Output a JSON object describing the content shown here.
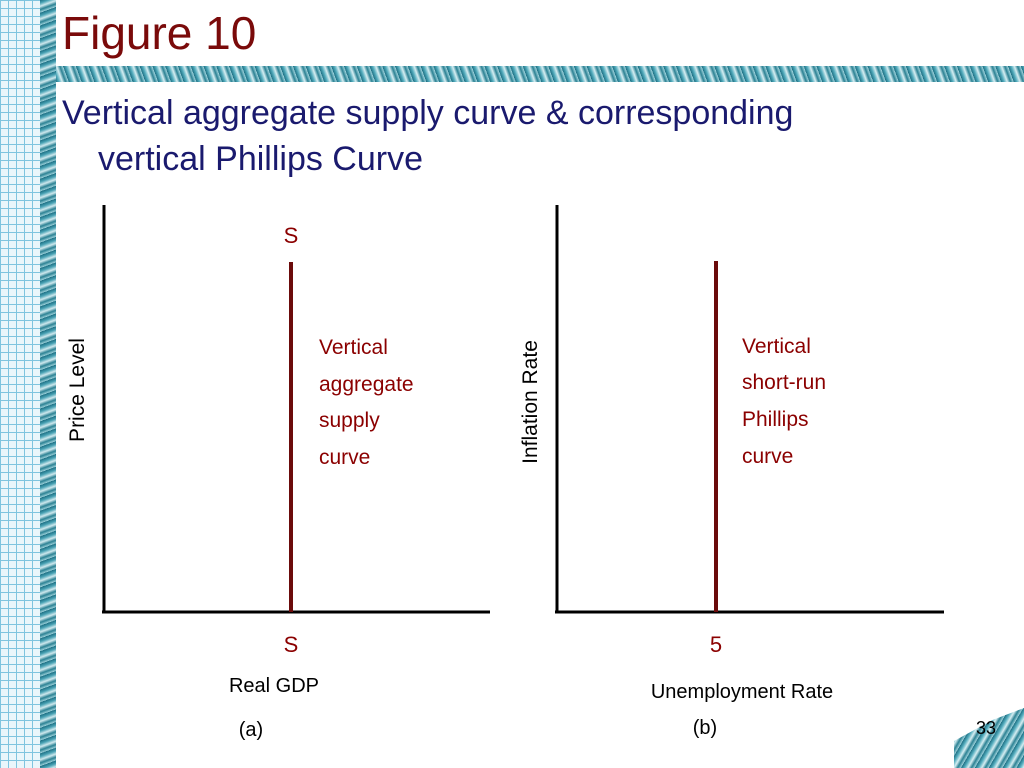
{
  "slide": {
    "title": "Figure 10",
    "subtitle_line1": "Vertical aggregate supply curve & corresponding",
    "subtitle_line2": "vertical Phillips Curve",
    "page_number": "33"
  },
  "colors": {
    "title": "#7a0a0a",
    "subtitle": "#1a1a6e",
    "curve": "#6b0b0b",
    "annotation": "#8b0000"
  },
  "panel_a": {
    "ylabel": "Price Level",
    "xlabel": "Real GDP",
    "panel_label": "(a)",
    "curve_top_label": "S",
    "curve_bottom_label": "S",
    "annotation": [
      "Vertical",
      "aggregate",
      "supply",
      "curve"
    ]
  },
  "panel_b": {
    "ylabel": "Inflation Rate",
    "xlabel": "Unemployment Rate",
    "panel_label": "(b)",
    "curve_bottom_label": "5",
    "annotation": [
      "Vertical",
      "short-run",
      "Phillips",
      "curve"
    ]
  }
}
